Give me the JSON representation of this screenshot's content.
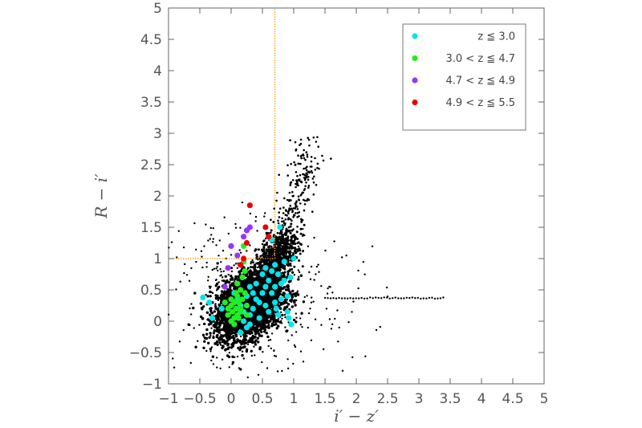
{
  "chart_data": {
    "type": "scatter",
    "title": "",
    "xlabel": "i′ − z′",
    "ylabel": "R − i′",
    "xlim": [
      -1,
      5
    ],
    "ylim": [
      -1,
      5
    ],
    "xticks": [
      -1,
      -0.5,
      0,
      0.5,
      1,
      1.5,
      2,
      2.5,
      3,
      3.5,
      4,
      4.5,
      5
    ],
    "xtick_labels": [
      "−1",
      "−0.5",
      "0",
      "0.5",
      "1",
      "1.5",
      "2",
      "2.5",
      "3",
      "3.5",
      "4",
      "4.5",
      "5"
    ],
    "yticks": [
      -1,
      -0.5,
      0,
      0.5,
      1,
      1.5,
      2,
      2.5,
      3,
      3.5,
      4,
      4.5,
      5
    ],
    "ytick_labels": [
      "−1",
      "−0.5",
      "0",
      "0.5",
      "1",
      "1.5",
      "2",
      "2.5",
      "3",
      "3.5",
      "4",
      "4.5",
      "5"
    ],
    "grid": false,
    "legend_position": "top-right",
    "selection_lines": {
      "color": "#ff9900",
      "style": "dotted",
      "horizontal": {
        "y": 1.0,
        "x_from": -1,
        "x_to": 0.7
      },
      "vertical": {
        "x": 0.7,
        "y_from": 1.0,
        "y_to": 5
      }
    },
    "background_population": {
      "color": "#000000",
      "core_cloud": {
        "center": [
          0.3,
          0.3
        ],
        "spread": [
          0.35,
          0.35
        ]
      },
      "plume": {
        "from": [
          0.6,
          0.9
        ],
        "to": [
          1.3,
          3.1
        ]
      },
      "outliers_range": {
        "x": [
          -0.9,
          3.4
        ],
        "y": [
          -0.9,
          3.1
        ]
      },
      "horizontal_streak": {
        "y": 0.37,
        "x_from": 1.5,
        "x_to": 3.4
      }
    },
    "series": [
      {
        "name": "z ≦ 3.0",
        "color": "#00e5ee",
        "points": [
          [
            -0.45,
            0.38
          ],
          [
            -0.35,
            0.3
          ],
          [
            -0.3,
            0.05
          ],
          [
            -0.15,
            0.2
          ],
          [
            0.05,
            0.45
          ],
          [
            0.1,
            0.35
          ],
          [
            0.15,
            0.25
          ],
          [
            0.2,
            0.15
          ],
          [
            0.25,
            0.4
          ],
          [
            0.3,
            0.55
          ],
          [
            0.3,
            0.1
          ],
          [
            0.35,
            0.2
          ],
          [
            0.4,
            0.6
          ],
          [
            0.45,
            0.3
          ],
          [
            0.5,
            0.75
          ],
          [
            0.5,
            0.45
          ],
          [
            0.55,
            0.85
          ],
          [
            0.55,
            0.25
          ],
          [
            0.6,
            0.65
          ],
          [
            0.6,
            0.15
          ],
          [
            0.65,
            1.3
          ],
          [
            0.65,
            0.45
          ],
          [
            0.7,
            0.9
          ],
          [
            0.7,
            0.55
          ],
          [
            0.72,
            0.2
          ],
          [
            0.75,
            0.75
          ],
          [
            0.75,
            0.1
          ],
          [
            0.78,
            1.5
          ],
          [
            0.8,
            0.6
          ],
          [
            0.8,
            0.35
          ],
          [
            0.85,
            0.95
          ],
          [
            0.85,
            0.65
          ],
          [
            0.9,
            0.4
          ],
          [
            0.9,
            0.15
          ],
          [
            0.95,
            0.7
          ],
          [
            1.0,
            1.0
          ],
          [
            0.2,
            0.0
          ],
          [
            0.25,
            -0.1
          ],
          [
            0.3,
            -0.05
          ],
          [
            0.45,
            0.05
          ],
          [
            0.92,
            0.05
          ],
          [
            0.96,
            -0.05
          ],
          [
            0.15,
            -0.18
          ],
          [
            0.4,
            0.35
          ],
          [
            0.55,
            0.55
          ],
          [
            0.65,
            0.8
          ],
          [
            0.7,
            0.3
          ],
          [
            0.35,
            0.45
          ]
        ]
      },
      {
        "name": "3.0 < z ≦ 4.7",
        "color": "#22ee22",
        "points": [
          [
            -0.1,
            0.3
          ],
          [
            -0.05,
            0.2
          ],
          [
            -0.05,
            0.1
          ],
          [
            0.0,
            0.25
          ],
          [
            0.0,
            0.0
          ],
          [
            0.02,
            0.15
          ],
          [
            0.05,
            0.3
          ],
          [
            0.05,
            0.05
          ],
          [
            0.08,
            0.2
          ],
          [
            0.1,
            0.6
          ],
          [
            0.1,
            0.4
          ],
          [
            0.1,
            0.1
          ],
          [
            0.12,
            0.3
          ],
          [
            0.12,
            0.05
          ],
          [
            0.15,
            0.5
          ],
          [
            0.15,
            0.2
          ],
          [
            0.18,
            0.7
          ],
          [
            0.18,
            0.35
          ],
          [
            0.2,
            1.2
          ],
          [
            0.2,
            0.95
          ],
          [
            0.22,
            0.8
          ],
          [
            0.22,
            0.45
          ],
          [
            0.25,
            0.25
          ],
          [
            0.05,
            -0.05
          ],
          [
            0.15,
            0.15
          ],
          [
            0.25,
            0.1
          ],
          [
            0.0,
            0.35
          ],
          [
            0.08,
            0.45
          ]
        ]
      },
      {
        "name": "4.7 < z ≦ 4.9",
        "color": "#9933ff",
        "points": [
          [
            -0.1,
            0.55
          ],
          [
            -0.05,
            0.85
          ],
          [
            0.0,
            1.2
          ],
          [
            0.1,
            1.05
          ],
          [
            0.15,
            0.9
          ],
          [
            0.25,
            1.45
          ],
          [
            0.3,
            1.5
          ],
          [
            0.2,
            1.35
          ]
        ]
      },
      {
        "name": "4.9 < z ≦ 5.5",
        "color": "#ee0000",
        "points": [
          [
            0.3,
            1.85
          ],
          [
            0.55,
            1.5
          ],
          [
            0.6,
            1.35
          ],
          [
            0.25,
            1.25
          ],
          [
            0.2,
            1.0
          ],
          [
            0.15,
            0.9
          ]
        ]
      }
    ]
  }
}
